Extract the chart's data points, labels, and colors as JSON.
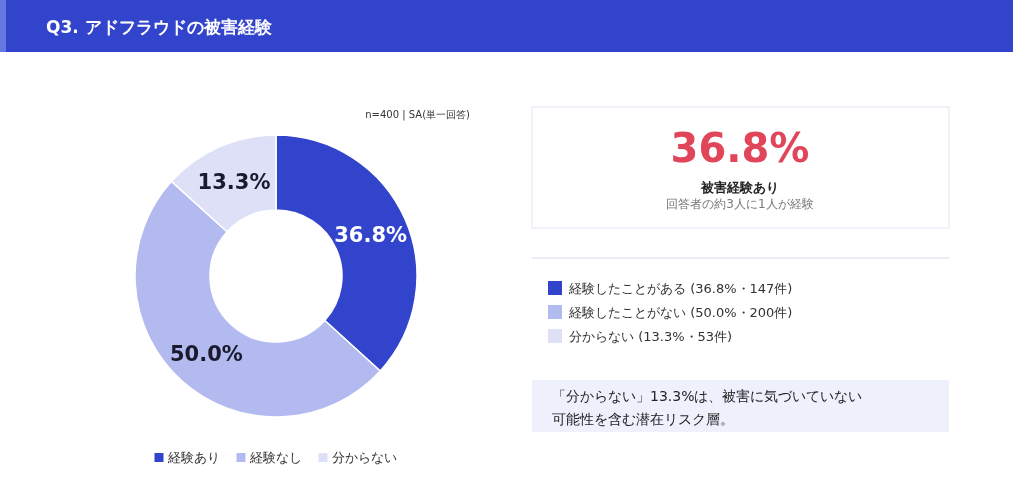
{
  "chart_data": [
    {
      "type": "donut",
      "title": "Q3. アドフラウドの被害経験",
      "subtitle": "n=400 | SA(単一回答)",
      "categories": [
        "経験あり",
        "経験なし",
        "分からない"
      ],
      "values": [
        36.8,
        50.0,
        13.3
      ],
      "colors": [
        "#3344cc",
        "#b3baf0",
        "#dde0f7"
      ],
      "value_labels": [
        "36.8%",
        "50.0%",
        "13.3%"
      ],
      "legend": "bottom"
    },
    {
      "type": "other",
      "title": "36.8%",
      "subtitle": "被害経験あり",
      "colors": [
        "#3344cc",
        "#b3baf0",
        "#dde0f7"
      ],
      "annotations": [
        "回答者の約3人に1人が経験",
        "経験したことがある (36.8%・147件)",
        "経験したことがない (50.0%・200件)",
        "分からない (13.3%・53件)",
        "「分からない」13.3%は、被害に気づいていない",
        "可能性を含む潜在リスク層。"
      ]
    }
  ]
}
